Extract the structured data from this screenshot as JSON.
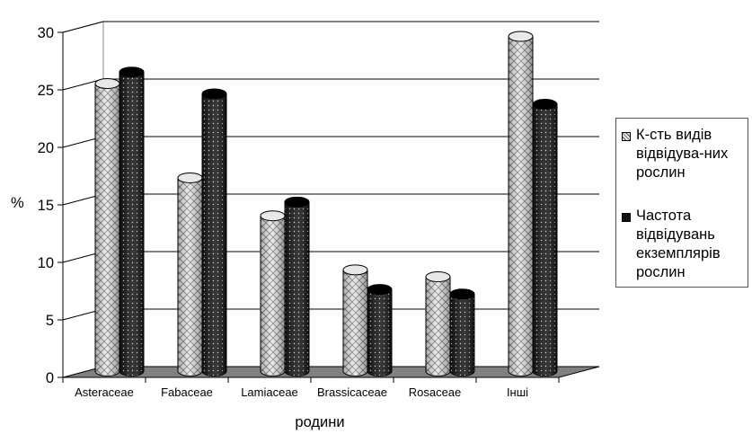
{
  "chart_data": {
    "type": "bar",
    "ylabel": "%",
    "xlabel": "родини",
    "ylim": [
      0,
      30
    ],
    "yticks": [
      0,
      5,
      10,
      15,
      20,
      25,
      30
    ],
    "grid": true,
    "legend_position": "right",
    "categories": [
      "Asteraceae",
      "Fabaceae",
      "Lamiaceae",
      "Brassicaceae",
      "Rosaceae",
      "Інші"
    ],
    "series": [
      {
        "name": "К-сть видів відвідува-них рослин",
        "values": [
          25,
          16.8,
          13.5,
          8.8,
          8.2,
          29.1
        ]
      },
      {
        "name": "Частота відвідувань екземплярів рослин",
        "values": [
          26,
          24.1,
          14.7,
          7.1,
          6.7,
          23.2
        ]
      }
    ],
    "colors": {
      "series1": "#d9d9d9",
      "series2": "#1a1a1a",
      "floor": "#808080",
      "grid": "#000000"
    }
  }
}
